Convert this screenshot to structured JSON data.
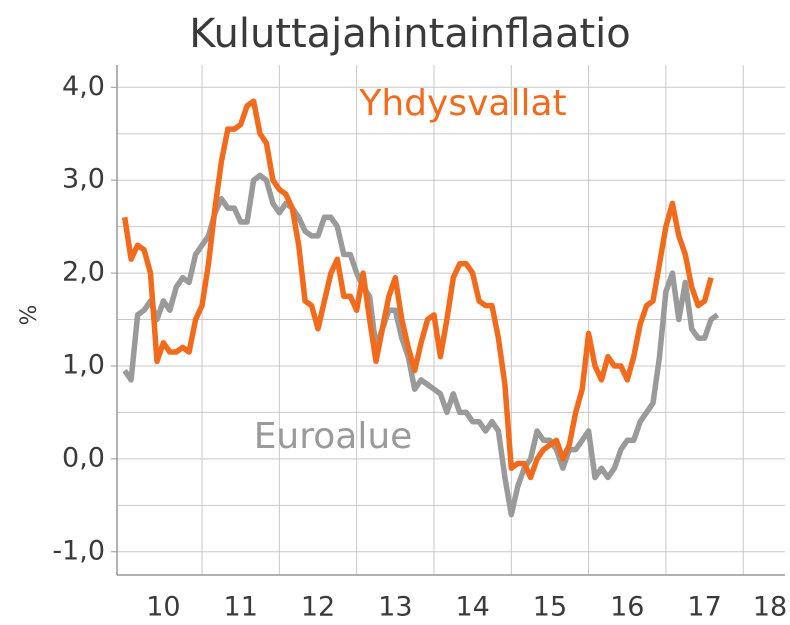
{
  "chart_data": {
    "type": "line",
    "title": "Kuluttajahintainflaatio",
    "y_label": "%",
    "annotations": [
      "Yhdysvallat",
      "Euroalue"
    ],
    "x": [
      2010,
      2010.083,
      2010.167,
      2010.25,
      2010.333,
      2010.417,
      2010.5,
      2010.583,
      2010.667,
      2010.75,
      2010.833,
      2010.917,
      2011,
      2011.083,
      2011.167,
      2011.25,
      2011.333,
      2011.417,
      2011.5,
      2011.583,
      2011.667,
      2011.75,
      2011.833,
      2011.917,
      2012,
      2012.083,
      2012.167,
      2012.25,
      2012.333,
      2012.417,
      2012.5,
      2012.583,
      2012.667,
      2012.75,
      2012.833,
      2012.917,
      2013,
      2013.083,
      2013.167,
      2013.25,
      2013.333,
      2013.417,
      2013.5,
      2013.583,
      2013.667,
      2013.75,
      2013.833,
      2013.917,
      2014,
      2014.083,
      2014.167,
      2014.25,
      2014.333,
      2014.417,
      2014.5,
      2014.583,
      2014.667,
      2014.75,
      2014.833,
      2014.917,
      2015,
      2015.083,
      2015.167,
      2015.25,
      2015.333,
      2015.417,
      2015.5,
      2015.583,
      2015.667,
      2015.75,
      2015.833,
      2015.917,
      2016,
      2016.083,
      2016.167,
      2016.25,
      2016.333,
      2016.417,
      2016.5,
      2016.583,
      2016.667,
      2016.75,
      2016.833,
      2016.917,
      2017,
      2017.083,
      2017.167,
      2017.25,
      2017.333,
      2017.417,
      2017.5,
      2017.583,
      2017.667
    ],
    "series": [
      {
        "name": "Yhdysvallat",
        "color": "#f26b1d",
        "values": [
          2.6,
          2.15,
          2.3,
          2.25,
          2.0,
          1.05,
          1.25,
          1.15,
          1.15,
          1.2,
          1.15,
          1.5,
          1.65,
          2.1,
          2.7,
          3.2,
          3.55,
          3.55,
          3.6,
          3.8,
          3.85,
          3.5,
          3.4,
          3.0,
          2.9,
          2.85,
          2.7,
          2.3,
          1.7,
          1.65,
          1.4,
          1.7,
          2.0,
          2.15,
          1.75,
          1.75,
          1.6,
          2.0,
          1.5,
          1.05,
          1.4,
          1.75,
          1.95,
          1.5,
          1.2,
          0.95,
          1.25,
          1.5,
          1.55,
          1.1,
          1.5,
          1.95,
          2.1,
          2.1,
          2.0,
          1.7,
          1.65,
          1.65,
          1.3,
          0.8,
          -0.1,
          -0.05,
          -0.05,
          -0.2,
          0.0,
          0.1,
          0.15,
          0.2,
          0.0,
          0.15,
          0.5,
          0.75,
          1.35,
          1.0,
          0.85,
          1.1,
          1.0,
          1.0,
          0.85,
          1.1,
          1.45,
          1.65,
          1.7,
          2.1,
          2.5,
          2.75,
          2.4,
          2.2,
          1.85,
          1.65,
          1.7,
          1.95,
          null
        ]
      },
      {
        "name": "Euroalue",
        "color": "#9a9a9a",
        "values": [
          0.95,
          0.85,
          1.55,
          1.6,
          1.7,
          1.5,
          1.7,
          1.6,
          1.85,
          1.95,
          1.9,
          2.2,
          2.3,
          2.4,
          2.65,
          2.8,
          2.7,
          2.7,
          2.55,
          2.55,
          3.0,
          3.05,
          3.0,
          2.75,
          2.65,
          2.75,
          2.7,
          2.6,
          2.45,
          2.4,
          2.4,
          2.6,
          2.6,
          2.5,
          2.2,
          2.2,
          2.0,
          1.85,
          1.75,
          1.2,
          1.4,
          1.6,
          1.6,
          1.3,
          1.1,
          0.75,
          0.85,
          0.8,
          0.75,
          0.7,
          0.5,
          0.7,
          0.5,
          0.5,
          0.4,
          0.4,
          0.3,
          0.4,
          0.3,
          -0.2,
          -0.6,
          -0.3,
          -0.1,
          0.0,
          0.3,
          0.2,
          0.2,
          0.1,
          -0.1,
          0.1,
          0.1,
          0.2,
          0.3,
          -0.2,
          -0.1,
          -0.2,
          -0.1,
          0.1,
          0.2,
          0.2,
          0.4,
          0.5,
          0.6,
          1.1,
          1.8,
          2.0,
          1.5,
          1.9,
          1.4,
          1.3,
          1.3,
          1.5,
          1.55
        ]
      }
    ],
    "xlim": [
      2009.9,
      2018.54
    ],
    "xticks": [
      {
        "value": 2010.5,
        "label": "10"
      },
      {
        "value": 2011.5,
        "label": "11"
      },
      {
        "value": 2012.5,
        "label": "12"
      },
      {
        "value": 2013.5,
        "label": "13"
      },
      {
        "value": 2014.5,
        "label": "14"
      },
      {
        "value": 2015.5,
        "label": "15"
      },
      {
        "value": 2016.5,
        "label": "16"
      },
      {
        "value": 2017.5,
        "label": "17"
      },
      {
        "value": 2018.5,
        "label": "18"
      }
    ],
    "xgrid": [
      2011,
      2012,
      2013,
      2014,
      2015,
      2016,
      2017,
      2018
    ],
    "ylim": [
      -1.25,
      4.24
    ],
    "yticks": [
      {
        "value": -1,
        "label": "-1,0"
      },
      {
        "value": 0,
        "label": "0,0"
      },
      {
        "value": 1,
        "label": "1,0"
      },
      {
        "value": 2,
        "label": "2,0"
      },
      {
        "value": 3,
        "label": "3,0"
      },
      {
        "value": 4,
        "label": "4,0"
      }
    ],
    "ygrid": [
      -1,
      -0.5,
      0,
      0.5,
      1,
      1.5,
      2,
      2.5,
      3,
      3.5,
      4
    ],
    "grid": true
  }
}
